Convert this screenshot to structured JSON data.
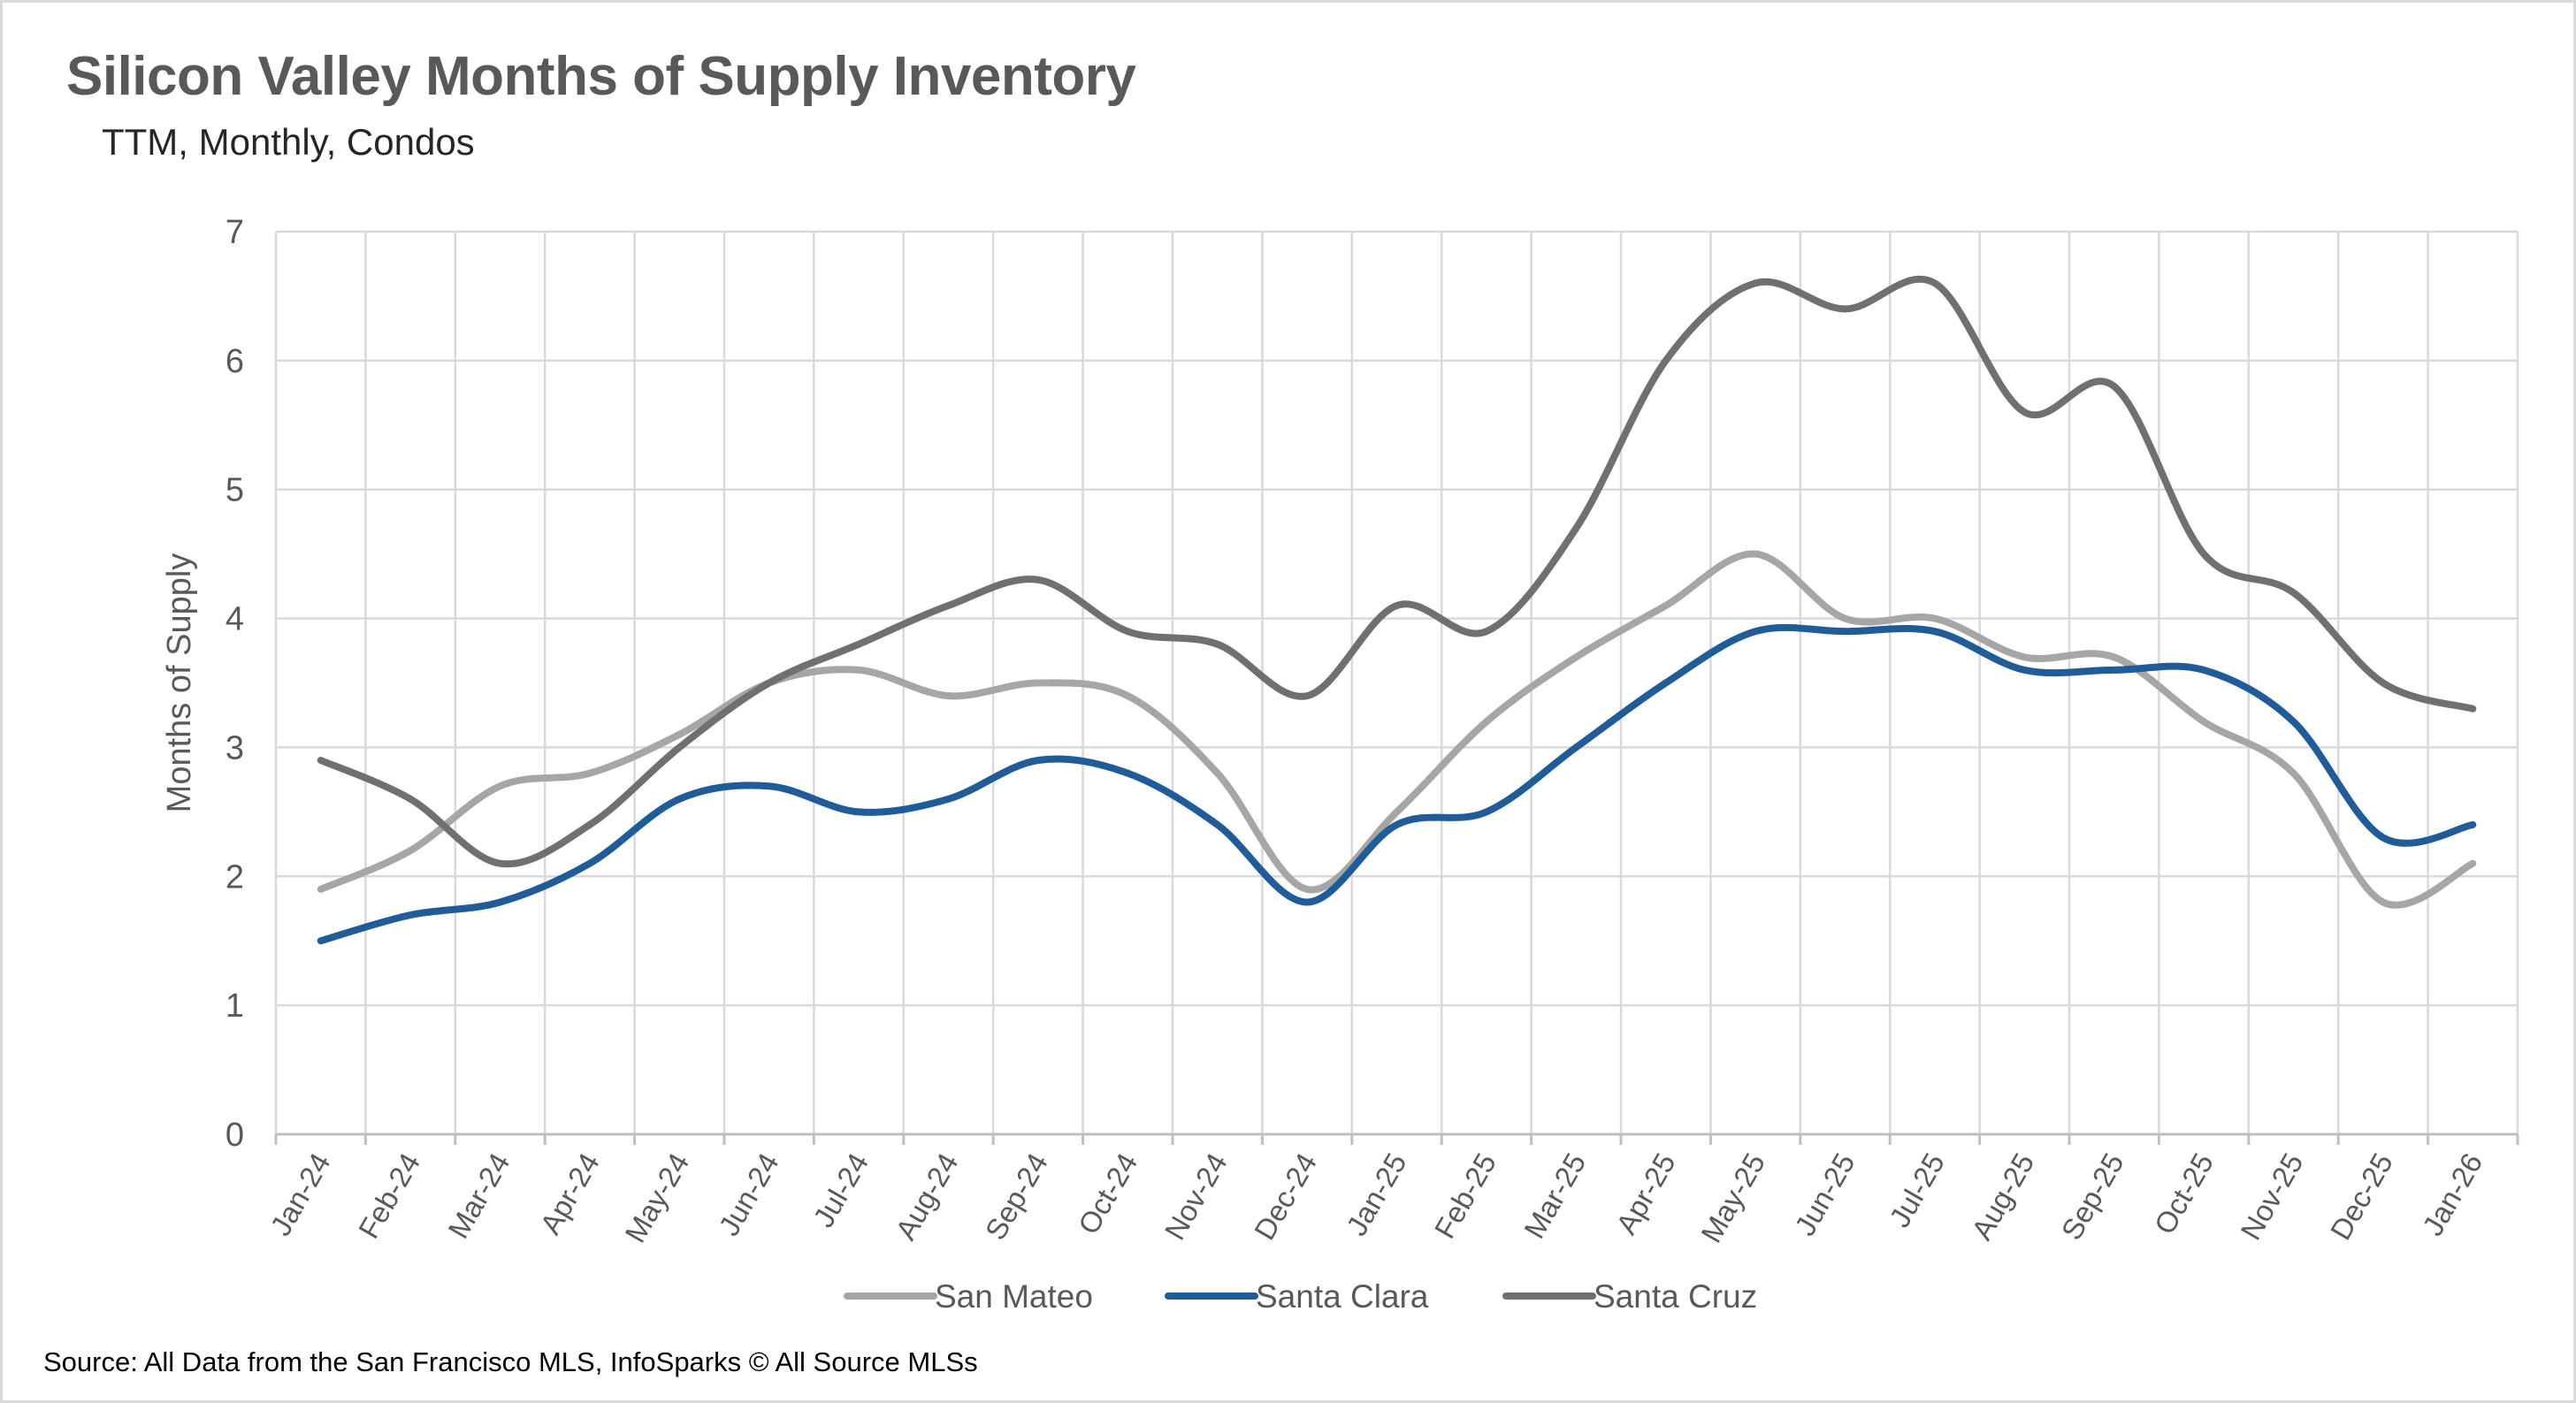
{
  "title": "Silicon Valley Months of Supply Inventory",
  "subtitle": "TTM, Monthly, Condos",
  "source": "Source: All Data from the San Francisco MLS, InfoSparks © All Source MLSs",
  "chart_data": {
    "type": "line",
    "title": "Silicon Valley Months of Supply Inventory",
    "subtitle": "TTM, Monthly, Condos",
    "xlabel": "",
    "ylabel": "Months of Supply",
    "ylim": [
      0,
      7
    ],
    "yticks": [
      0,
      1,
      2,
      3,
      4,
      5,
      6,
      7
    ],
    "grid": true,
    "legend_position": "bottom",
    "categories": [
      "Jan-24",
      "Feb-24",
      "Mar-24",
      "Apr-24",
      "May-24",
      "Jun-24",
      "Jul-24",
      "Aug-24",
      "Sep-24",
      "Oct-24",
      "Nov-24",
      "Dec-24",
      "Jan-25",
      "Feb-25",
      "Mar-25",
      "Apr-25",
      "May-25",
      "Jun-25",
      "Jul-25",
      "Aug-25",
      "Sep-25",
      "Oct-25",
      "Nov-25",
      "Dec-25",
      "Jan-26"
    ],
    "series": [
      {
        "name": "San Mateo",
        "color": "#a6a6a6",
        "values": [
          1.9,
          2.2,
          2.7,
          2.8,
          3.1,
          3.5,
          3.6,
          3.4,
          3.5,
          3.4,
          2.8,
          1.9,
          2.5,
          3.2,
          3.7,
          4.1,
          4.5,
          4.0,
          4.0,
          3.7,
          3.7,
          3.2,
          2.8,
          1.8,
          2.1
        ]
      },
      {
        "name": "Santa Clara",
        "color": "#1f5c99",
        "values": [
          1.5,
          1.7,
          1.8,
          2.1,
          2.6,
          2.7,
          2.5,
          2.6,
          2.9,
          2.8,
          2.4,
          1.8,
          2.4,
          2.5,
          3.0,
          3.5,
          3.9,
          3.9,
          3.9,
          3.6,
          3.6,
          3.6,
          3.2,
          2.3,
          2.4
        ]
      },
      {
        "name": "Santa Cruz",
        "color": "#707070",
        "values": [
          2.9,
          2.6,
          2.1,
          2.4,
          3.0,
          3.5,
          3.8,
          4.1,
          4.3,
          3.9,
          3.8,
          3.4,
          4.1,
          3.9,
          4.7,
          6.0,
          6.6,
          6.4,
          6.6,
          5.6,
          5.8,
          4.5,
          4.2,
          3.5,
          3.3
        ]
      }
    ]
  }
}
